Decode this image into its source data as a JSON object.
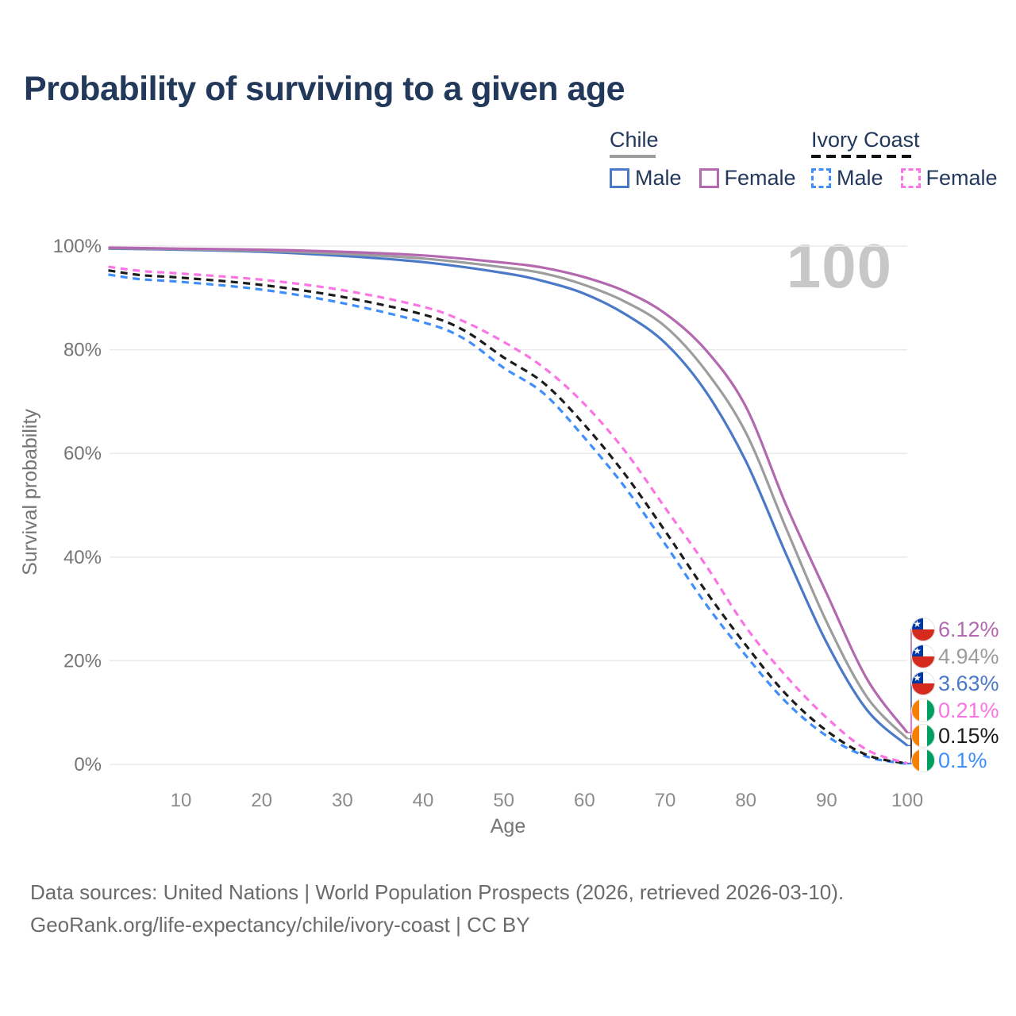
{
  "title": "Probability of surviving to a given age",
  "watermark": "100",
  "legend": {
    "groups": [
      {
        "label": "Chile",
        "line_style": "solid",
        "underline_color": "#9d9d9d",
        "items": [
          {
            "label": "Male",
            "color": "#4a79c8",
            "dashed": false
          },
          {
            "label": "Female",
            "color": "#b468af",
            "dashed": false
          }
        ]
      },
      {
        "label": "Ivory Coast",
        "line_style": "dashed",
        "underline_color": "#111111",
        "items": [
          {
            "label": "Male",
            "color": "#3f8efc",
            "dashed": true
          },
          {
            "label": "Female",
            "color": "#fb74e4",
            "dashed": true
          }
        ]
      }
    ]
  },
  "chart_data": {
    "type": "line",
    "title": "Probability of surviving to a given age",
    "xlabel": "Age",
    "ylabel": "Survival probability",
    "xlim": [
      1,
      100
    ],
    "ylim": [
      0,
      100
    ],
    "x_ticks": [
      10,
      20,
      30,
      40,
      50,
      60,
      70,
      80,
      90,
      100
    ],
    "y_ticks": [
      0,
      20,
      40,
      60,
      80,
      100
    ],
    "y_tick_suffix": "%",
    "grid": "horizontal",
    "legend_position": "top-right",
    "series": [
      {
        "id": "ivory-coast-male",
        "country": "Ivory Coast",
        "sex": "male",
        "style": "dashed",
        "color": "#3f8efc",
        "flag": "ivory-coast",
        "end_label": "0.1%",
        "label_row": 5,
        "points": [
          [
            1,
            94.5
          ],
          [
            5,
            93.6
          ],
          [
            10,
            93.1
          ],
          [
            20,
            91.6
          ],
          [
            30,
            89.0
          ],
          [
            40,
            85.3
          ],
          [
            45,
            82.2
          ],
          [
            50,
            76.5
          ],
          [
            55,
            71.5
          ],
          [
            60,
            63.0
          ],
          [
            65,
            53.5
          ],
          [
            70,
            42.5
          ],
          [
            75,
            31.0
          ],
          [
            80,
            21.0
          ],
          [
            85,
            12.0
          ],
          [
            90,
            5.5
          ],
          [
            95,
            1.5
          ],
          [
            100,
            0.1
          ]
        ]
      },
      {
        "id": "ivory-coast-combined",
        "country": "Ivory Coast",
        "sex": "all",
        "style": "dashed",
        "color": "#1c1c1c",
        "flag": "ivory-coast",
        "end_label": "0.15%",
        "label_row": 4,
        "points": [
          [
            1,
            95.3
          ],
          [
            5,
            94.4
          ],
          [
            10,
            93.9
          ],
          [
            20,
            92.5
          ],
          [
            30,
            90.2
          ],
          [
            40,
            86.8
          ],
          [
            45,
            83.8
          ],
          [
            50,
            78.5
          ],
          [
            55,
            73.5
          ],
          [
            60,
            65.5
          ],
          [
            65,
            56.0
          ],
          [
            70,
            45.0
          ],
          [
            75,
            33.5
          ],
          [
            80,
            23.0
          ],
          [
            85,
            13.5
          ],
          [
            90,
            6.5
          ],
          [
            95,
            1.8
          ],
          [
            100,
            0.15
          ]
        ]
      },
      {
        "id": "ivory-coast-female",
        "country": "Ivory Coast",
        "sex": "female",
        "style": "dashed",
        "color": "#fb74e4",
        "flag": "ivory-coast",
        "end_label": "0.21%",
        "label_row": 3,
        "points": [
          [
            1,
            96.0
          ],
          [
            5,
            95.2
          ],
          [
            10,
            94.7
          ],
          [
            20,
            93.5
          ],
          [
            30,
            91.5
          ],
          [
            40,
            88.3
          ],
          [
            45,
            85.5
          ],
          [
            50,
            81.5
          ],
          [
            55,
            76.5
          ],
          [
            60,
            69.5
          ],
          [
            65,
            60.5
          ],
          [
            70,
            49.5
          ],
          [
            75,
            38.5
          ],
          [
            80,
            26.5
          ],
          [
            85,
            17.0
          ],
          [
            90,
            9.0
          ],
          [
            95,
            2.8
          ],
          [
            100,
            0.21
          ]
        ]
      },
      {
        "id": "chile-male",
        "country": "Chile",
        "sex": "male",
        "style": "solid",
        "color": "#4a79c8",
        "flag": "chile",
        "end_label": "3.63%",
        "label_row": 2,
        "points": [
          [
            1,
            99.5
          ],
          [
            10,
            99.3
          ],
          [
            20,
            98.9
          ],
          [
            30,
            98.1
          ],
          [
            40,
            96.9
          ],
          [
            50,
            94.8
          ],
          [
            55,
            93.2
          ],
          [
            60,
            90.8
          ],
          [
            65,
            86.9
          ],
          [
            70,
            81.3
          ],
          [
            75,
            72.0
          ],
          [
            80,
            58.5
          ],
          [
            85,
            40.5
          ],
          [
            90,
            23.5
          ],
          [
            95,
            10.5
          ],
          [
            100,
            3.63
          ]
        ]
      },
      {
        "id": "chile-combined",
        "country": "Chile",
        "sex": "all",
        "style": "solid",
        "color": "#9d9d9d",
        "flag": "chile",
        "end_label": "4.94%",
        "label_row": 1,
        "points": [
          [
            1,
            99.6
          ],
          [
            10,
            99.4
          ],
          [
            20,
            99.1
          ],
          [
            30,
            98.5
          ],
          [
            40,
            97.6
          ],
          [
            50,
            95.9
          ],
          [
            55,
            94.7
          ],
          [
            60,
            92.5
          ],
          [
            65,
            89.3
          ],
          [
            70,
            84.5
          ],
          [
            75,
            76.0
          ],
          [
            80,
            64.0
          ],
          [
            85,
            45.5
          ],
          [
            90,
            27.5
          ],
          [
            95,
            13.0
          ],
          [
            100,
            4.94
          ]
        ]
      },
      {
        "id": "chile-female",
        "country": "Chile",
        "sex": "female",
        "style": "solid",
        "color": "#b468af",
        "flag": "chile",
        "end_label": "6.12%",
        "label_row": 0,
        "points": [
          [
            1,
            99.7
          ],
          [
            10,
            99.5
          ],
          [
            20,
            99.3
          ],
          [
            30,
            98.9
          ],
          [
            40,
            98.2
          ],
          [
            50,
            96.8
          ],
          [
            55,
            95.8
          ],
          [
            60,
            94.0
          ],
          [
            65,
            91.3
          ],
          [
            70,
            87.0
          ],
          [
            75,
            80.0
          ],
          [
            80,
            69.0
          ],
          [
            85,
            50.0
          ],
          [
            90,
            33.0
          ],
          [
            95,
            16.5
          ],
          [
            100,
            6.12
          ]
        ]
      }
    ]
  },
  "footer": {
    "line1": "Data sources: United Nations | World Population Prospects (2026, retrieved 2026-03-10).",
    "line2": "GeoRank.org/life-expectancy/chile/ivory-coast | CC BY"
  }
}
